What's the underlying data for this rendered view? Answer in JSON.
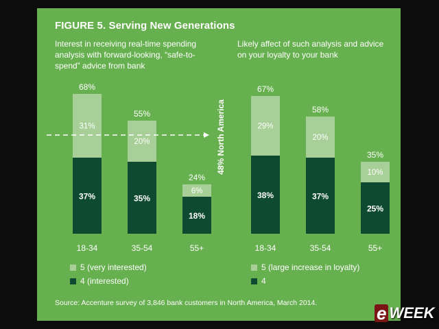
{
  "figure": {
    "title": "FIGURE 5. Serving New Generations",
    "source": "Source: Accenture survey of 3,846 bank customers in North America, March 2014."
  },
  "colors": {
    "panel_bg": "#67b04f",
    "light_bar": "#a8cf98",
    "dark_bar": "#0e4a2f",
    "text": "#ffffff"
  },
  "logo": {
    "first": "e",
    "rest": "WEEK"
  },
  "chart_data": [
    {
      "type": "bar",
      "stacked": true,
      "title": "Interest in receiving real-time spending\nanalysis with forward-looking, “safe-to-\nspend” advice from bank",
      "categories": [
        "18-34",
        "35-54",
        "55+"
      ],
      "series": [
        {
          "name": "4 (interested)",
          "values": [
            37,
            35,
            18
          ],
          "labels": [
            "37%",
            "35%",
            "18%"
          ],
          "color": "#0e4a2f"
        },
        {
          "name": "5 (very interested)",
          "values": [
            31,
            20,
            6
          ],
          "labels": [
            "31%",
            "20%",
            "6%"
          ],
          "color": "#a8cf98"
        }
      ],
      "totals": [
        "68%",
        "55%",
        "24%"
      ],
      "reference_line": {
        "value": 48,
        "label": "48% North America"
      },
      "ylim": [
        0,
        75
      ],
      "legend": [
        {
          "label": "5 (very interested)",
          "color": "#a8cf98"
        },
        {
          "label": "4 (interested)",
          "color": "#0e4a2f"
        }
      ]
    },
    {
      "type": "bar",
      "stacked": true,
      "title": " Likely affect of such analysis and advice\non your loyalty to your bank",
      "categories": [
        "18-34",
        "35-54",
        "55+"
      ],
      "series": [
        {
          "name": "4",
          "values": [
            38,
            37,
            25
          ],
          "labels": [
            "38%",
            "37%",
            "25%"
          ],
          "color": "#0e4a2f"
        },
        {
          "name": "5 (large increase in loyalty)",
          "values": [
            29,
            20,
            10
          ],
          "labels": [
            "29%",
            "20%",
            "10%"
          ],
          "color": "#a8cf98"
        }
      ],
      "totals": [
        "67%",
        "58%",
        "35%"
      ],
      "ylim": [
        0,
        75
      ],
      "legend": [
        {
          "label": "5 (large increase in loyalty)",
          "color": "#a8cf98"
        },
        {
          "label": "4",
          "color": "#0e4a2f"
        }
      ]
    }
  ]
}
